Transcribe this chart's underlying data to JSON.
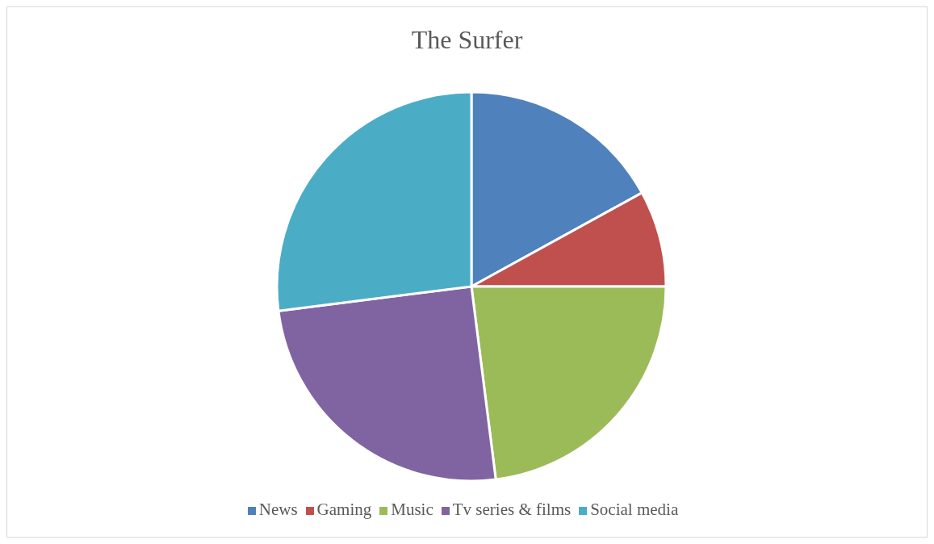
{
  "chart_data": {
    "type": "pie",
    "title": "The Surfer",
    "categories": [
      "News",
      "Gaming",
      "Music",
      "Tv series & films",
      "Social media"
    ],
    "values": [
      17,
      8,
      23,
      25,
      27
    ],
    "colors": [
      "#4f81bd",
      "#c0504d",
      "#9bbb59",
      "#8064a2",
      "#4bacc6"
    ],
    "legend": "bottom"
  }
}
